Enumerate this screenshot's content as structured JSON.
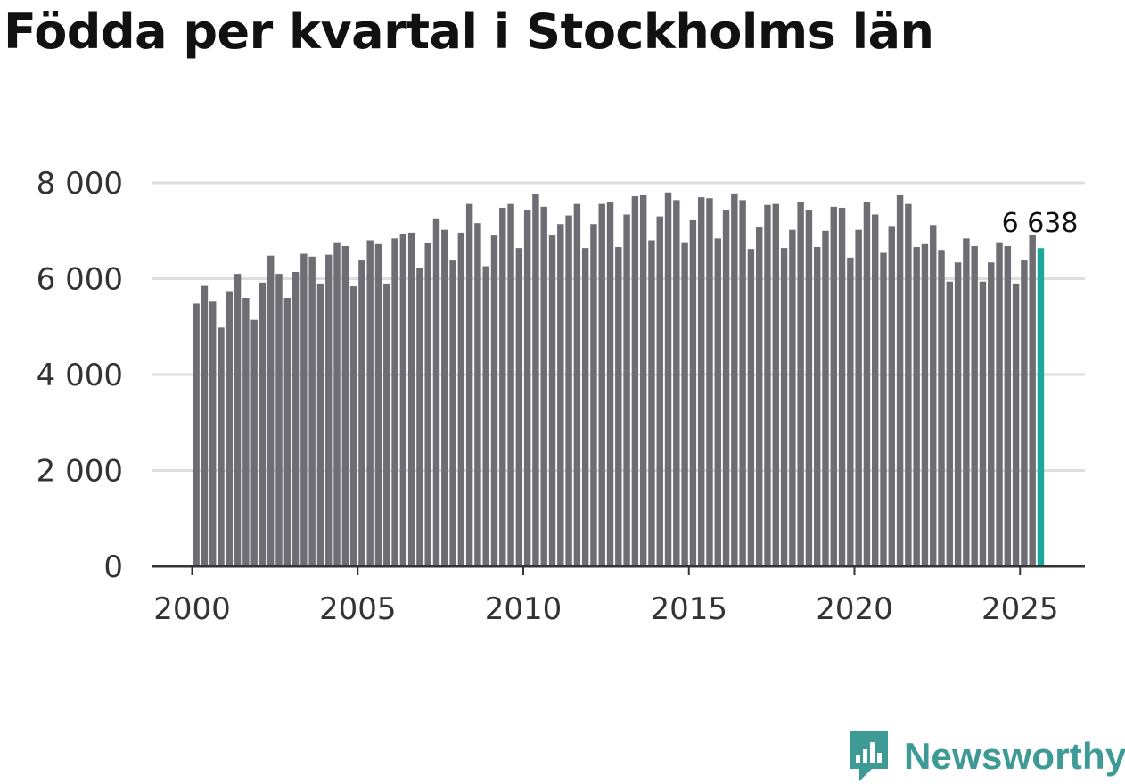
{
  "title": "Födda per kvartal i Stockholms län",
  "brand": {
    "name": "Newsworthy",
    "icon": "newsworthy-logo-icon",
    "color": "#3d9a94"
  },
  "chart_data": {
    "type": "bar",
    "title": "Födda per kvartal i Stockholms län",
    "xlabel": "",
    "ylabel": "",
    "ylim": [
      0,
      8000
    ],
    "yticks": [
      0,
      2000,
      4000,
      6000,
      8000
    ],
    "ytick_labels": [
      "0",
      "2 000",
      "4 000",
      "6 000",
      "8 000"
    ],
    "xticks": [
      2000,
      2005,
      2010,
      2015,
      2020,
      2025
    ],
    "xtick_labels": [
      "2000",
      "2005",
      "2010",
      "2015",
      "2020",
      "2025"
    ],
    "start_year": 2000,
    "start_quarter": 1,
    "bar_color": "#6d6d73",
    "highlight_color": "#1aa89a",
    "highlight_label": "6 638",
    "grid": true,
    "values": [
      5480,
      5850,
      5520,
      4980,
      5740,
      6100,
      5600,
      5140,
      5920,
      6480,
      6100,
      5600,
      6140,
      6520,
      6460,
      5900,
      6500,
      6760,
      6680,
      5840,
      6380,
      6800,
      6720,
      5900,
      6840,
      6940,
      6960,
      6220,
      6740,
      7260,
      7020,
      6380,
      6960,
      7560,
      7160,
      6260,
      6900,
      7480,
      7560,
      6640,
      7440,
      7760,
      7500,
      6920,
      7140,
      7320,
      7560,
      6640,
      7140,
      7560,
      7600,
      6660,
      7340,
      7720,
      7740,
      6800,
      7300,
      7800,
      7640,
      6760,
      7220,
      7700,
      7680,
      6840,
      7440,
      7780,
      7640,
      6620,
      7080,
      7540,
      7560,
      6640,
      7020,
      7600,
      7440,
      6660,
      7000,
      7500,
      7480,
      6440,
      7020,
      7600,
      7340,
      6540,
      7100,
      7740,
      7560,
      6660,
      6720,
      7120,
      6600,
      5940,
      6340,
      6840,
      6680,
      5940,
      6340,
      6760,
      6680,
      5900,
      6380,
      6920,
      6638
    ]
  }
}
